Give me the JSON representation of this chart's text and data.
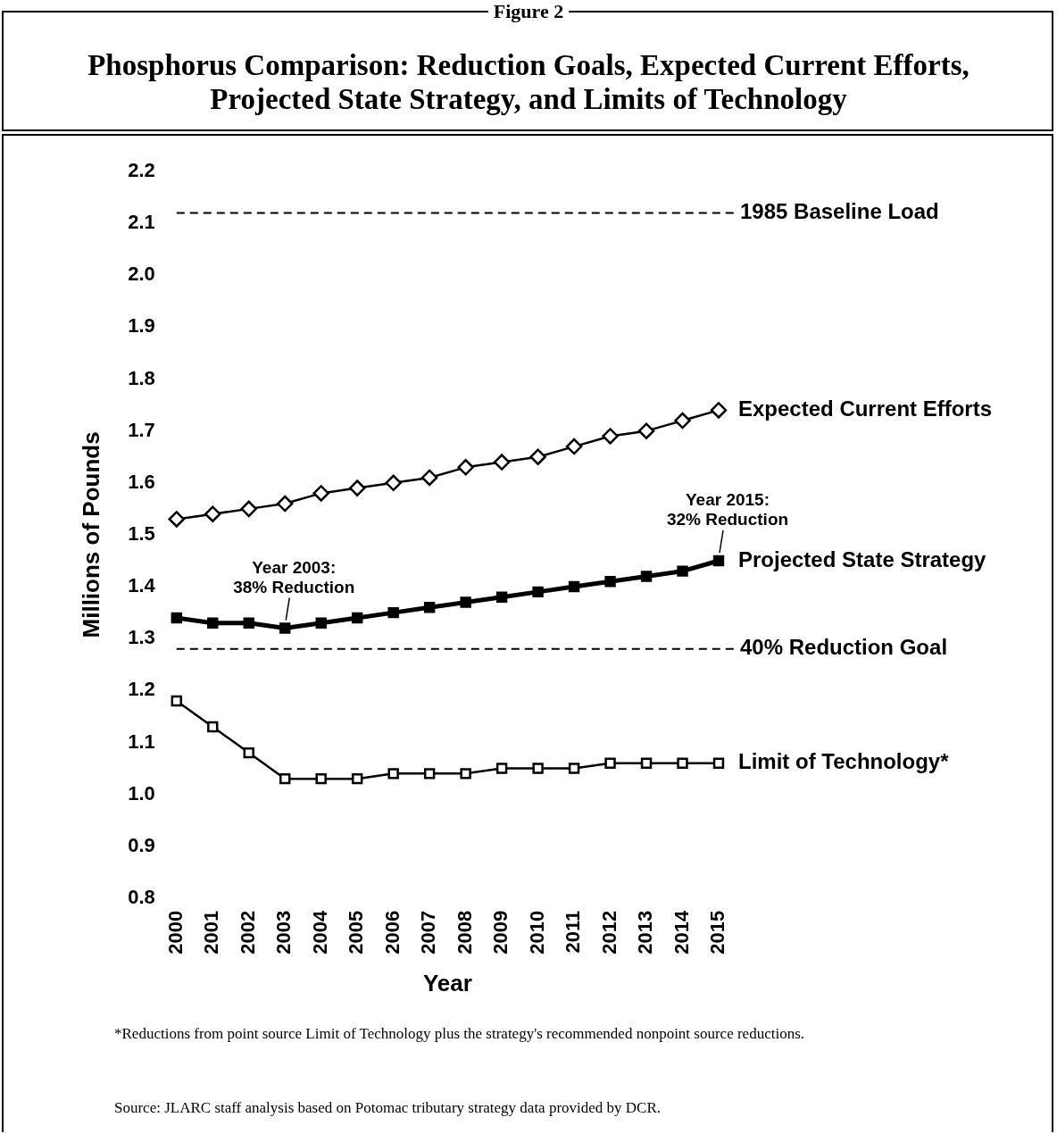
{
  "chart_data": {
    "type": "line",
    "title": "Phosphorus Comparison:  Reduction Goals, Expected Current Efforts, Projected State Strategy, and Limits of Technology",
    "subtitle": "Figure 2",
    "xlabel": "Year",
    "ylabel": "Millions of Pounds",
    "categories": [
      "2000",
      "2001",
      "2002",
      "2003",
      "2004",
      "2005",
      "2006",
      "2007",
      "2008",
      "2009",
      "2010",
      "2011",
      "2012",
      "2013",
      "2014",
      "2015"
    ],
    "ylim": [
      0.8,
      2.2
    ],
    "yticks": [
      {
        "value": 0.8,
        "label": "0.8"
      },
      {
        "value": 0.9,
        "label": "0.9"
      },
      {
        "value": 1.0,
        "label": "1.0"
      },
      {
        "value": 1.1,
        "label": "1.1"
      },
      {
        "value": 1.2,
        "label": "1.2"
      },
      {
        "value": 1.3,
        "label": "1.3"
      },
      {
        "value": 1.4,
        "label": "1.4"
      },
      {
        "value": 1.5,
        "label": "1.5"
      },
      {
        "value": 1.6,
        "label": "1.6"
      },
      {
        "value": 1.7,
        "label": "1.7"
      },
      {
        "value": 1.8,
        "label": "1.8"
      },
      {
        "value": 1.9,
        "label": "1.9"
      },
      {
        "value": 2.0,
        "label": "2.0"
      },
      {
        "value": 2.1,
        "label": "2.1"
      },
      {
        "value": 2.2,
        "label": "2.2"
      }
    ],
    "grid": false,
    "legend": "right",
    "line_style": "solid",
    "series": [
      {
        "name": "Expected Current Efforts",
        "color": "#000000",
        "marker": "diamond",
        "values": [
          1.53,
          1.54,
          1.55,
          1.56,
          1.58,
          1.59,
          1.6,
          1.61,
          1.63,
          1.64,
          1.65,
          1.67,
          1.69,
          1.7,
          1.72,
          1.74
        ]
      },
      {
        "name": "Projected State Strategy",
        "color": "#000000",
        "marker": "square",
        "values": [
          1.34,
          1.33,
          1.33,
          1.32,
          1.33,
          1.34,
          1.35,
          1.36,
          1.37,
          1.38,
          1.39,
          1.4,
          1.41,
          1.42,
          1.43,
          1.45
        ]
      },
      {
        "name": "Limit of Technology*",
        "color": "#000000",
        "marker": "square",
        "values": [
          1.18,
          1.13,
          1.08,
          1.03,
          1.03,
          1.03,
          1.04,
          1.04,
          1.04,
          1.05,
          1.05,
          1.05,
          1.06,
          1.06,
          1.06,
          1.06
        ]
      }
    ],
    "ref_lines": [
      {
        "axis": "y",
        "value": 2.12,
        "label": "1985 Baseline Load",
        "color": "#000000",
        "line_style": "dashed"
      },
      {
        "axis": "y",
        "value": 1.28,
        "label": "40% Reduction Goal",
        "color": "#000000",
        "line_style": "dashed"
      }
    ],
    "annotations": [
      {
        "text": "Year 2003:\n38% Reduction",
        "x": "2003",
        "y": 1.32
      },
      {
        "text": "Year 2015:\n32% Reduction",
        "x": "2015",
        "y": 1.45
      },
      "*Reductions from point source Limit of Technology plus the strategy's recommended nonpoint source reductions.",
      "Source:  JLARC staff analysis based on Potomac tributary strategy data provided by DCR."
    ]
  }
}
